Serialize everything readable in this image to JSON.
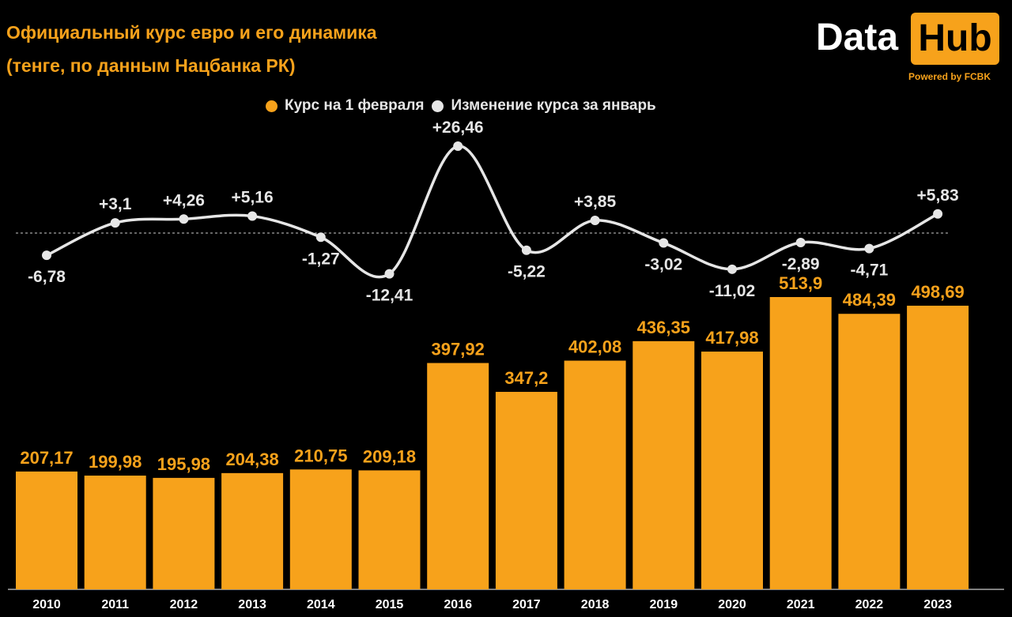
{
  "header": {
    "title_line1": "Официальный курс евро и его динамика",
    "title_line2": "(тенге, по данным Нацбанка РК)"
  },
  "logo": {
    "data": "Data",
    "hub": "Hub",
    "powered": "Powered by FCBK"
  },
  "legend": {
    "items": [
      {
        "label": "Курс на 1 февраля",
        "color": "#f7a21b"
      },
      {
        "label": "Изменение курса за январь",
        "color": "#e6e6e6"
      }
    ]
  },
  "colors": {
    "bar": "#f7a21b",
    "line": "#e6e6e6",
    "background": "#000000",
    "zero_line": "#cccccc"
  },
  "chart_data": {
    "type": "bar",
    "categories": [
      "2010",
      "2011",
      "2012",
      "2013",
      "2014",
      "2015",
      "2016",
      "2017",
      "2018",
      "2019",
      "2020",
      "2021",
      "2022",
      "2023"
    ],
    "series": [
      {
        "name": "Курс на 1 февраля",
        "type": "bar",
        "values": [
          207.17,
          199.98,
          195.98,
          204.38,
          210.75,
          209.18,
          397.92,
          347.2,
          402.08,
          436.35,
          417.98,
          513.9,
          484.39,
          498.69
        ],
        "labels": [
          "207,17",
          "199,98",
          "195,98",
          "204,38",
          "210,75",
          "209,18",
          "397,92",
          "347,2",
          "402,08",
          "436,35",
          "417,98",
          "513,9",
          "484,39",
          "498,69"
        ]
      },
      {
        "name": "Изменение курса за январь",
        "type": "line",
        "values": [
          -6.78,
          3.1,
          4.26,
          5.16,
          -1.27,
          -12.41,
          26.46,
          -5.22,
          3.85,
          -3.02,
          -11.02,
          -2.89,
          -4.71,
          5.83
        ],
        "labels": [
          "-6,78",
          "+3,1",
          "+4,26",
          "+5,16",
          "-1,27",
          "-12,41",
          "+26,46",
          "-5,22",
          "+3,85",
          "-3,02",
          "-11,02",
          "-2,89",
          "-4,71",
          "+5,83"
        ]
      }
    ],
    "zero_line": true
  }
}
